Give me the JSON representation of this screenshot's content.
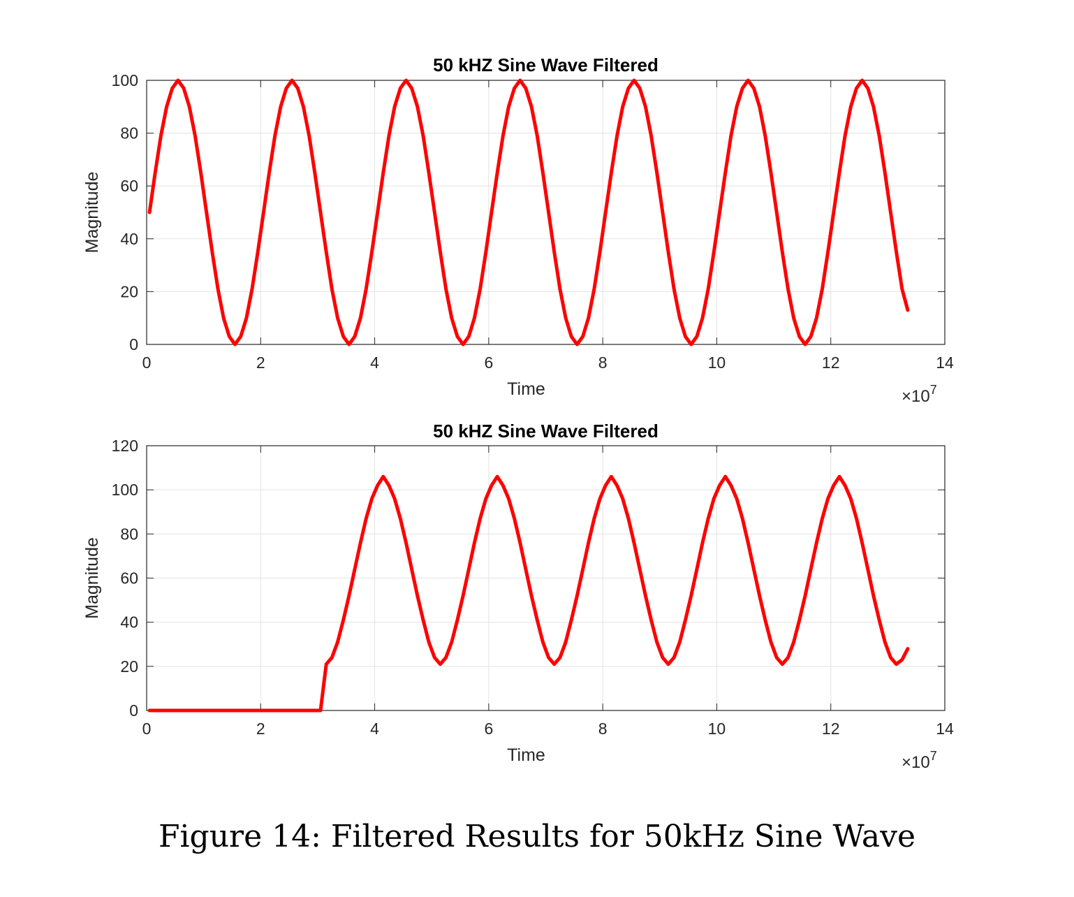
{
  "caption": "Figure 14: Filtered Results for 50kHz Sine Wave",
  "chart_data": [
    {
      "type": "line",
      "title": "50 kHZ Sine Wave Filtered",
      "xlabel": "Time",
      "ylabel": "Magnitude",
      "x_exponent_label": "×10",
      "x_exponent": "7",
      "xlim": [
        0,
        14
      ],
      "ylim": [
        0,
        100
      ],
      "xticks": [
        0,
        2,
        4,
        6,
        8,
        10,
        12,
        14
      ],
      "yticks": [
        0,
        20,
        40,
        60,
        80,
        100
      ],
      "grid": true,
      "color": "#ff0000",
      "series": [
        {
          "x": [
            0.05,
            0.15,
            0.25,
            0.35,
            0.45,
            0.55,
            0.65,
            0.75,
            0.85,
            0.95,
            1.05,
            1.15,
            1.25,
            1.35,
            1.45,
            1.55,
            1.65,
            1.75,
            1.85,
            1.95,
            2.05,
            2.15,
            2.25,
            2.35,
            2.45,
            2.55,
            2.65,
            2.75,
            2.85,
            2.95,
            3.05,
            3.15,
            3.25,
            3.35,
            3.45,
            3.55,
            3.65,
            3.75,
            3.85,
            3.95,
            4.05,
            4.15,
            4.25,
            4.35,
            4.45,
            4.55,
            4.65,
            4.75,
            4.85,
            4.95,
            5.05,
            5.15,
            5.25,
            5.35,
            5.45,
            5.55,
            5.65,
            5.75,
            5.85,
            5.95,
            6.05,
            6.15,
            6.25,
            6.35,
            6.45,
            6.55,
            6.65,
            6.75,
            6.85,
            6.95,
            7.05,
            7.15,
            7.25,
            7.35,
            7.45,
            7.55,
            7.65,
            7.75,
            7.85,
            7.95,
            8.05,
            8.15,
            8.25,
            8.35,
            8.45,
            8.55,
            8.65,
            8.75,
            8.85,
            8.95,
            9.05,
            9.15,
            9.25,
            9.35,
            9.45,
            9.55,
            9.65,
            9.75,
            9.85,
            9.95,
            10.05,
            10.15,
            10.25,
            10.35,
            10.45,
            10.55,
            10.65,
            10.75,
            10.85,
            10.95,
            11.05,
            11.15,
            11.25,
            11.35,
            11.45,
            11.55,
            11.65,
            11.75,
            11.85,
            11.95,
            12.05,
            12.15,
            12.25,
            12.35,
            12.45,
            12.55,
            12.65,
            12.75,
            12.85,
            12.95,
            13.05,
            13.15,
            13.25,
            13.35
          ],
          "y": [
            50,
            65,
            79,
            90,
            97,
            100,
            97,
            90,
            79,
            65,
            50,
            35,
            21,
            10,
            3,
            0,
            3,
            10,
            21,
            35,
            50,
            65,
            79,
            90,
            97,
            100,
            97,
            90,
            79,
            65,
            50,
            35,
            21,
            10,
            3,
            0,
            3,
            10,
            21,
            35,
            50,
            65,
            79,
            90,
            97,
            100,
            97,
            90,
            79,
            65,
            50,
            35,
            21,
            10,
            3,
            0,
            3,
            10,
            21,
            35,
            50,
            65,
            79,
            90,
            97,
            100,
            97,
            90,
            79,
            65,
            50,
            35,
            21,
            10,
            3,
            0,
            3,
            10,
            21,
            35,
            50,
            65,
            79,
            90,
            97,
            100,
            97,
            90,
            79,
            65,
            50,
            35,
            21,
            10,
            3,
            0,
            3,
            10,
            21,
            35,
            50,
            65,
            79,
            90,
            97,
            100,
            97,
            90,
            79,
            65,
            50,
            35,
            21,
            10,
            3,
            0,
            3,
            10,
            21,
            35,
            50,
            65,
            79,
            90,
            97,
            100,
            97,
            90,
            79,
            65,
            50,
            35,
            21,
            13
          ]
        }
      ]
    },
    {
      "type": "line",
      "title": "50 kHZ Sine Wave Filtered",
      "xlabel": "Time",
      "ylabel": "Magnitude",
      "x_exponent_label": "×10",
      "x_exponent": "7",
      "xlim": [
        0,
        14
      ],
      "ylim": [
        0,
        120
      ],
      "xticks": [
        0,
        2,
        4,
        6,
        8,
        10,
        12,
        14
      ],
      "yticks": [
        0,
        20,
        40,
        60,
        80,
        100,
        120
      ],
      "grid": true,
      "color": "#ff0000",
      "series": [
        {
          "x": [
            0.05,
            0.5,
            1.0,
            1.5,
            2.0,
            2.5,
            3.0,
            3.05,
            3.15,
            3.25,
            3.35,
            3.45,
            3.55,
            3.65,
            3.75,
            3.85,
            3.95,
            4.05,
            4.15,
            4.25,
            4.35,
            4.45,
            4.55,
            4.65,
            4.75,
            4.85,
            4.95,
            5.05,
            5.15,
            5.25,
            5.35,
            5.45,
            5.55,
            5.65,
            5.75,
            5.85,
            5.95,
            6.05,
            6.15,
            6.25,
            6.35,
            6.45,
            6.55,
            6.65,
            6.75,
            6.85,
            6.95,
            7.05,
            7.15,
            7.25,
            7.35,
            7.45,
            7.55,
            7.65,
            7.75,
            7.85,
            7.95,
            8.05,
            8.15,
            8.25,
            8.35,
            8.45,
            8.55,
            8.65,
            8.75,
            8.85,
            8.95,
            9.05,
            9.15,
            9.25,
            9.35,
            9.45,
            9.55,
            9.65,
            9.75,
            9.85,
            9.95,
            10.05,
            10.15,
            10.25,
            10.35,
            10.45,
            10.55,
            10.65,
            10.75,
            10.85,
            10.95,
            11.05,
            11.15,
            11.25,
            11.35,
            11.45,
            11.55,
            11.65,
            11.75,
            11.85,
            11.95,
            12.05,
            12.15,
            12.25,
            12.35,
            12.45,
            12.55,
            12.65,
            12.75,
            12.85,
            12.95,
            13.05,
            13.15,
            13.25,
            13.35
          ],
          "y": [
            0,
            0,
            0,
            0,
            0,
            0,
            0,
            0,
            21,
            24,
            31,
            41,
            52,
            64,
            76,
            87,
            96,
            102,
            106,
            102,
            96,
            87,
            76,
            64,
            52,
            41,
            31,
            24,
            21,
            24,
            31,
            41,
            52,
            64,
            76,
            87,
            96,
            102,
            106,
            102,
            96,
            87,
            76,
            64,
            52,
            41,
            31,
            24,
            21,
            24,
            31,
            41,
            52,
            64,
            76,
            87,
            96,
            102,
            106,
            102,
            96,
            87,
            76,
            64,
            52,
            41,
            31,
            24,
            21,
            24,
            31,
            41,
            52,
            64,
            76,
            87,
            96,
            102,
            106,
            102,
            96,
            87,
            76,
            64,
            52,
            41,
            31,
            24,
            21,
            24,
            31,
            41,
            52,
            64,
            76,
            87,
            96,
            102,
            106,
            102,
            96,
            87,
            76,
            64,
            52,
            41,
            31,
            24,
            21,
            23,
            28
          ]
        }
      ]
    }
  ]
}
